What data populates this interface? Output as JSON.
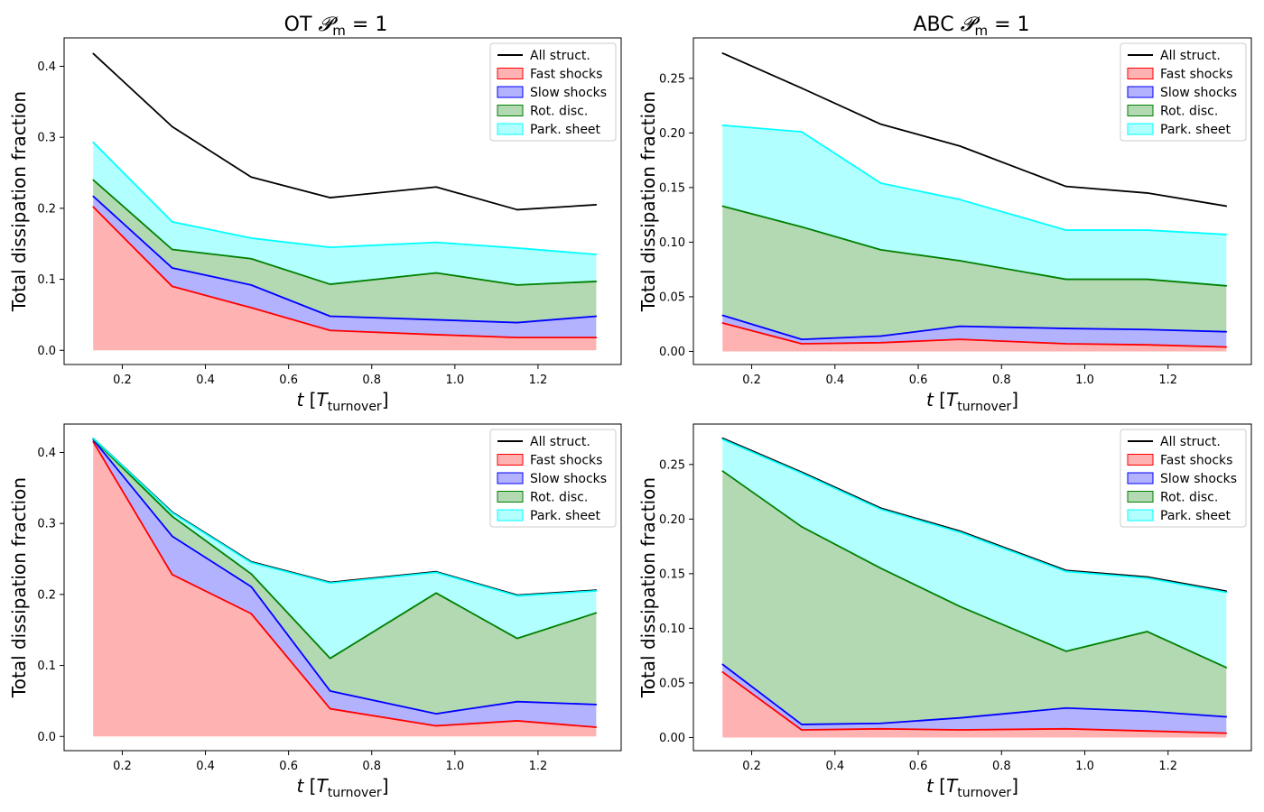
{
  "figure": {
    "col_titles": [
      {
        "main": "OT",
        "math": "𝓟",
        "sub": "m",
        "eq": " = 1"
      },
      {
        "main": "ABC",
        "math": "𝓟",
        "sub": "m",
        "eq": " = 1"
      }
    ]
  },
  "chart_data": [
    {
      "type": "area",
      "title": "OT  𝓟m = 1",
      "xlabel": "t [Tturnover]",
      "ylabel": "Total dissipation fraction",
      "xlim": [
        0.06,
        1.4
      ],
      "ylim": [
        -0.02,
        0.44
      ],
      "xticks": [
        0.2,
        0.4,
        0.6,
        0.8,
        1.0,
        1.2
      ],
      "yticks": [
        0.0,
        0.1,
        0.2,
        0.3,
        0.4
      ],
      "legend": "top-right",
      "x": [
        0.13,
        0.32,
        0.51,
        0.7,
        0.955,
        1.15,
        1.34
      ],
      "series": [
        {
          "name": "All struct.",
          "color": "#000000",
          "values": [
            0.418,
            0.315,
            0.244,
            0.215,
            0.23,
            0.198,
            0.205
          ]
        },
        {
          "name": "Fast shocks",
          "color": "#ff0000",
          "values": [
            0.202,
            0.09,
            0.06,
            0.028,
            0.022,
            0.018,
            0.018
          ]
        },
        {
          "name": "Slow shocks",
          "color": "#0000ff",
          "values": [
            0.217,
            0.116,
            0.092,
            0.048,
            0.043,
            0.039,
            0.048
          ]
        },
        {
          "name": "Rot. disc.",
          "color": "#008000",
          "values": [
            0.24,
            0.142,
            0.129,
            0.093,
            0.109,
            0.092,
            0.097
          ]
        },
        {
          "name": "Park. sheet",
          "color": "#00ffff",
          "values": [
            0.293,
            0.181,
            0.158,
            0.145,
            0.152,
            0.144,
            0.135
          ]
        }
      ]
    },
    {
      "type": "area",
      "title": "ABC  𝓟m = 1",
      "xlabel": "t [Tturnover]",
      "ylabel": "Total dissipation fraction",
      "xlim": [
        0.06,
        1.4
      ],
      "ylim": [
        -0.012,
        0.287
      ],
      "xticks": [
        0.2,
        0.4,
        0.6,
        0.8,
        1.0,
        1.2
      ],
      "yticks": [
        0.0,
        0.05,
        0.1,
        0.15,
        0.2,
        0.25
      ],
      "legend": "top-right",
      "x": [
        0.13,
        0.32,
        0.51,
        0.7,
        0.955,
        1.15,
        1.34
      ],
      "series": [
        {
          "name": "All struct.",
          "color": "#000000",
          "values": [
            0.273,
            0.241,
            0.208,
            0.188,
            0.151,
            0.145,
            0.133
          ]
        },
        {
          "name": "Fast shocks",
          "color": "#ff0000",
          "values": [
            0.026,
            0.007,
            0.008,
            0.011,
            0.007,
            0.006,
            0.004
          ]
        },
        {
          "name": "Slow shocks",
          "color": "#0000ff",
          "values": [
            0.033,
            0.011,
            0.014,
            0.023,
            0.021,
            0.02,
            0.018
          ]
        },
        {
          "name": "Rot. disc.",
          "color": "#008000",
          "values": [
            0.133,
            0.114,
            0.093,
            0.083,
            0.066,
            0.066,
            0.06
          ]
        },
        {
          "name": "Park. sheet",
          "color": "#00ffff",
          "values": [
            0.207,
            0.201,
            0.154,
            0.139,
            0.111,
            0.111,
            0.107
          ]
        }
      ]
    },
    {
      "type": "area",
      "title": "",
      "xlabel": "t [Tturnover]",
      "ylabel": "Total dissipation fraction",
      "xlim": [
        0.06,
        1.4
      ],
      "ylim": [
        -0.02,
        0.44
      ],
      "xticks": [
        0.2,
        0.4,
        0.6,
        0.8,
        1.0,
        1.2
      ],
      "yticks": [
        0.0,
        0.1,
        0.2,
        0.3,
        0.4
      ],
      "legend": "top-right",
      "x": [
        0.13,
        0.32,
        0.51,
        0.7,
        0.955,
        1.15,
        1.34
      ],
      "series": [
        {
          "name": "All struct.",
          "color": "#000000",
          "values": [
            0.42,
            0.316,
            0.246,
            0.217,
            0.232,
            0.199,
            0.206
          ]
        },
        {
          "name": "Fast shocks",
          "color": "#ff0000",
          "values": [
            0.415,
            0.228,
            0.173,
            0.039,
            0.015,
            0.022,
            0.013
          ]
        },
        {
          "name": "Slow shocks",
          "color": "#0000ff",
          "values": [
            0.418,
            0.282,
            0.211,
            0.064,
            0.032,
            0.049,
            0.045
          ]
        },
        {
          "name": "Rot. disc.",
          "color": "#008000",
          "values": [
            0.419,
            0.31,
            0.229,
            0.11,
            0.202,
            0.138,
            0.174
          ]
        },
        {
          "name": "Park. sheet",
          "color": "#00ffff",
          "values": [
            0.42,
            0.315,
            0.245,
            0.216,
            0.231,
            0.198,
            0.205
          ]
        }
      ]
    },
    {
      "type": "area",
      "title": "",
      "xlabel": "t [Tturnover]",
      "ylabel": "Total dissipation fraction",
      "xlim": [
        0.06,
        1.4
      ],
      "ylim": [
        -0.012,
        0.287
      ],
      "xticks": [
        0.2,
        0.4,
        0.6,
        0.8,
        1.0,
        1.2
      ],
      "yticks": [
        0.0,
        0.05,
        0.1,
        0.15,
        0.2,
        0.25
      ],
      "legend": "top-right",
      "x": [
        0.13,
        0.32,
        0.51,
        0.7,
        0.955,
        1.15,
        1.34
      ],
      "series": [
        {
          "name": "All struct.",
          "color": "#000000",
          "values": [
            0.274,
            0.243,
            0.21,
            0.189,
            0.153,
            0.147,
            0.134
          ]
        },
        {
          "name": "Fast shocks",
          "color": "#ff0000",
          "values": [
            0.06,
            0.007,
            0.008,
            0.007,
            0.008,
            0.006,
            0.004
          ]
        },
        {
          "name": "Slow shocks",
          "color": "#0000ff",
          "values": [
            0.067,
            0.012,
            0.013,
            0.018,
            0.027,
            0.024,
            0.019
          ]
        },
        {
          "name": "Rot. disc.",
          "color": "#008000",
          "values": [
            0.244,
            0.193,
            0.155,
            0.12,
            0.079,
            0.097,
            0.064
          ]
        },
        {
          "name": "Park. sheet",
          "color": "#00ffff",
          "values": [
            0.273,
            0.242,
            0.209,
            0.188,
            0.152,
            0.146,
            0.133
          ]
        }
      ]
    }
  ]
}
